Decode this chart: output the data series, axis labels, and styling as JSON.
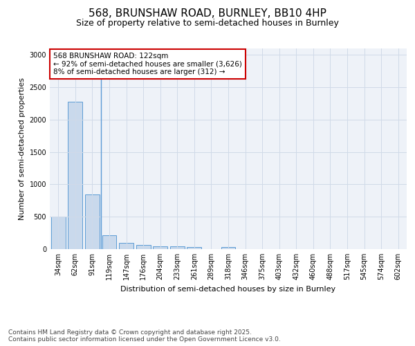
{
  "title1": "568, BRUNSHAW ROAD, BURNLEY, BB10 4HP",
  "title2": "Size of property relative to semi-detached houses in Burnley",
  "xlabel": "Distribution of semi-detached houses by size in Burnley",
  "ylabel": "Number of semi-detached properties",
  "categories": [
    "34sqm",
    "62sqm",
    "91sqm",
    "119sqm",
    "147sqm",
    "176sqm",
    "204sqm",
    "233sqm",
    "261sqm",
    "289sqm",
    "318sqm",
    "346sqm",
    "375sqm",
    "403sqm",
    "432sqm",
    "460sqm",
    "488sqm",
    "517sqm",
    "545sqm",
    "574sqm",
    "602sqm"
  ],
  "values": [
    500,
    2280,
    840,
    210,
    100,
    60,
    45,
    40,
    30,
    0,
    30,
    0,
    0,
    0,
    0,
    0,
    0,
    0,
    0,
    0,
    0
  ],
  "bar_color": "#c9d9ec",
  "bar_edge_color": "#5b9bd5",
  "annotation_text": "568 BRUNSHAW ROAD: 122sqm\n← 92% of semi-detached houses are smaller (3,626)\n8% of semi-detached houses are larger (312) →",
  "annotation_box_facecolor": "#ffffff",
  "annotation_box_edgecolor": "#cc0000",
  "vline_color": "#5b9bd5",
  "ylim": [
    0,
    3100
  ],
  "yticks": [
    0,
    500,
    1000,
    1500,
    2000,
    2500,
    3000
  ],
  "grid_color": "#d0dae8",
  "bg_color": "#eef2f8",
  "footer": "Contains HM Land Registry data © Crown copyright and database right 2025.\nContains public sector information licensed under the Open Government Licence v3.0.",
  "title_fontsize": 11,
  "subtitle_fontsize": 9,
  "axis_label_fontsize": 8,
  "tick_fontsize": 7,
  "annotation_fontsize": 7.5,
  "footer_fontsize": 6.5
}
